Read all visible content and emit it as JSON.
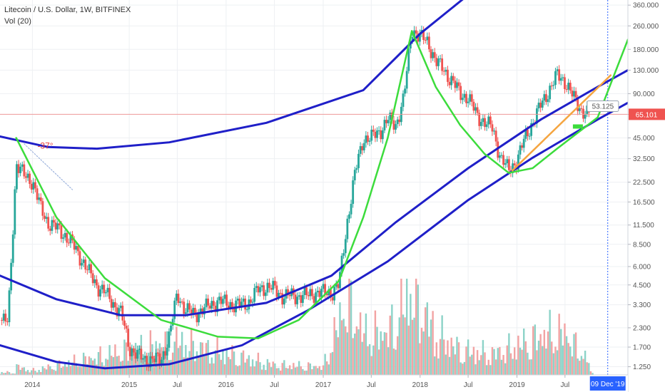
{
  "header": {
    "title": "Litecoin / U.S. Dollar, 1W, BITFINEX",
    "volume_label": "Vol (20)"
  },
  "chart_data": {
    "type": "candlestick",
    "y_scale": "log",
    "ylim": [
      1.1,
      390
    ],
    "xlim": [
      "2013-09-01",
      "2020-02-23"
    ],
    "y_ticks": [
      "360.000",
      "260.000",
      "180.000",
      "130.000",
      "90.000",
      "65.000",
      "45.000",
      "32.500",
      "22.500",
      "16.500",
      "11.500",
      "8.500",
      "6.000",
      "4.500",
      "3.300",
      "2.300",
      "1.700",
      "1.250"
    ],
    "x_ticks": [
      "2014",
      "2015",
      "Jul",
      "2016",
      "Jul",
      "2017",
      "Jul",
      "2018",
      "Jul",
      "2019",
      "Jul"
    ],
    "x_tick_dates": [
      "2014-01-01",
      "2015-01-01",
      "2015-07-01",
      "2016-01-01",
      "2016-07-01",
      "2017-01-01",
      "2017-07-01",
      "2018-01-01",
      "2018-07-01",
      "2019-01-01",
      "2019-07-01"
    ],
    "last_price": "65.101",
    "price_marker": "53.125",
    "date_marker": "09 Dec '19",
    "date_marker_date": "2019-12-09",
    "angle_label": "-37°",
    "candles_weekly": [
      [
        "2013-09-01",
        2.6
      ],
      [
        "2013-10-01",
        2.5
      ],
      [
        "2013-11-01",
        30
      ],
      [
        "2013-12-01",
        25
      ],
      [
        "2014-01-01",
        23
      ],
      [
        "2014-02-01",
        15
      ],
      [
        "2014-03-01",
        12
      ],
      [
        "2014-04-01",
        11
      ],
      [
        "2014-05-01",
        10
      ],
      [
        "2014-06-01",
        8.5
      ],
      [
        "2014-07-01",
        7
      ],
      [
        "2014-08-01",
        5.5
      ],
      [
        "2014-09-01",
        4.5
      ],
      [
        "2014-10-01",
        4
      ],
      [
        "2014-11-01",
        3.4
      ],
      [
        "2014-12-01",
        2.9
      ],
      [
        "2015-01-01",
        1.7
      ],
      [
        "2015-02-01",
        1.5
      ],
      [
        "2015-03-01",
        1.4
      ],
      [
        "2015-04-01",
        1.4
      ],
      [
        "2015-05-01",
        1.4
      ],
      [
        "2015-06-01",
        2
      ],
      [
        "2015-07-01",
        4
      ],
      [
        "2015-08-01",
        3
      ],
      [
        "2015-09-01",
        2.9
      ],
      [
        "2015-10-01",
        3
      ],
      [
        "2015-11-01",
        3.3
      ],
      [
        "2015-12-01",
        3.5
      ],
      [
        "2016-01-01",
        3.4
      ],
      [
        "2016-02-01",
        3.3
      ],
      [
        "2016-03-01",
        3.3
      ],
      [
        "2016-04-01",
        3.5
      ],
      [
        "2016-05-01",
        4.2
      ],
      [
        "2016-06-01",
        4.4
      ],
      [
        "2016-07-01",
        4.2
      ],
      [
        "2016-08-01",
        3.8
      ],
      [
        "2016-09-01",
        3.8
      ],
      [
        "2016-10-01",
        3.8
      ],
      [
        "2016-11-01",
        3.8
      ],
      [
        "2016-12-01",
        4
      ],
      [
        "2017-01-01",
        4
      ],
      [
        "2017-02-01",
        4
      ],
      [
        "2017-03-01",
        4.5
      ],
      [
        "2017-04-01",
        12
      ],
      [
        "2017-05-01",
        26
      ],
      [
        "2017-06-01",
        45
      ],
      [
        "2017-07-01",
        45
      ],
      [
        "2017-08-01",
        50
      ],
      [
        "2017-09-01",
        60
      ],
      [
        "2017-10-01",
        55
      ],
      [
        "2017-11-01",
        85
      ],
      [
        "2017-12-01",
        250
      ],
      [
        "2018-01-01",
        220
      ],
      [
        "2018-02-01",
        200
      ],
      [
        "2018-03-01",
        150
      ],
      [
        "2018-04-01",
        130
      ],
      [
        "2018-05-01",
        110
      ],
      [
        "2018-06-01",
        90
      ],
      [
        "2018-07-01",
        85
      ],
      [
        "2018-08-01",
        65
      ],
      [
        "2018-09-01",
        58
      ],
      [
        "2018-10-01",
        52
      ],
      [
        "2018-11-01",
        33
      ],
      [
        "2018-12-01",
        27
      ],
      [
        "2019-01-01",
        32
      ],
      [
        "2019-02-01",
        45
      ],
      [
        "2019-03-01",
        58
      ],
      [
        "2019-04-01",
        75
      ],
      [
        "2019-05-01",
        95
      ],
      [
        "2019-06-01",
        120
      ],
      [
        "2019-07-01",
        110
      ],
      [
        "2019-08-01",
        85
      ],
      [
        "2019-09-01",
        70
      ],
      [
        "2019-10-01",
        65
      ]
    ],
    "volume_monthly": [
      [
        "2013-11-01",
        0.1
      ],
      [
        "2014-01-01",
        0.05
      ],
      [
        "2015-01-01",
        0.3
      ],
      [
        "2015-07-01",
        0.4
      ],
      [
        "2016-07-01",
        0.12
      ],
      [
        "2017-01-01",
        0.1
      ],
      [
        "2017-04-01",
        0.9
      ],
      [
        "2017-06-01",
        0.5
      ],
      [
        "2017-09-01",
        0.5
      ],
      [
        "2017-12-01",
        1.0
      ],
      [
        "2018-03-01",
        0.5
      ],
      [
        "2018-06-01",
        0.3
      ],
      [
        "2018-10-01",
        0.25
      ],
      [
        "2019-01-01",
        0.35
      ],
      [
        "2019-05-01",
        0.5
      ],
      [
        "2019-07-01",
        0.5
      ],
      [
        "2019-10-01",
        0.15
      ]
    ],
    "colors": {
      "up": "#26a69a",
      "down": "#ef5350",
      "vol_up": "#8cd3c8",
      "vol_down": "#f2a3a3",
      "blue_curves": "#1f1fc8",
      "green_curves": "#3cdc3c",
      "orange_trend": "#f5a540",
      "price_line": "#ef9a9a",
      "date_line": "#2962ff",
      "date_badge": "#2962ff"
    }
  }
}
